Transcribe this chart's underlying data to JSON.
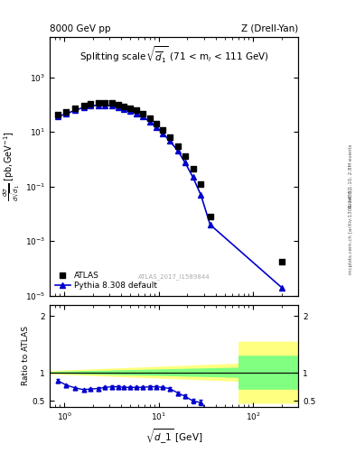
{
  "title_left": "8000 GeV pp",
  "title_right": "Z (Drell-Yan)",
  "plot_title": "Splitting scale $\\sqrt{\\overline{d}_1}$ (71 < m$_l$ < 111 GeV)",
  "ylabel_ratio": "Ratio to ATLAS",
  "watermark": "ATLAS_2017_I1589844",
  "right_label_top": "Rivet 3.1.10, 2.8M events",
  "right_label_bot": "mcplots.cern.ch [arXiv:1306.3436]",
  "xlim": [
    0.7,
    300
  ],
  "ylim_main": [
    1e-05,
    30000.0
  ],
  "ylim_ratio": [
    0.4,
    2.2
  ],
  "atlas_x": [
    0.85,
    1.05,
    1.3,
    1.6,
    1.9,
    2.3,
    2.7,
    3.2,
    3.7,
    4.3,
    5.0,
    5.8,
    6.8,
    8.0,
    9.5,
    11.0,
    13.0,
    16.0,
    19.0,
    23.0,
    28.0,
    35.0,
    200.0
  ],
  "atlas_y": [
    42,
    55,
    75,
    95,
    110,
    118,
    118,
    112,
    102,
    88,
    75,
    62,
    48,
    32,
    20,
    12,
    6.5,
    3.0,
    1.3,
    0.45,
    0.12,
    0.008,
    0.00018
  ],
  "pythia_x": [
    0.85,
    1.05,
    1.3,
    1.6,
    1.9,
    2.3,
    2.7,
    3.2,
    3.7,
    4.3,
    5.0,
    5.8,
    6.8,
    8.0,
    9.5,
    11.0,
    13.0,
    16.0,
    19.0,
    23.0,
    28.0,
    35.0,
    200.0
  ],
  "pythia_y": [
    36,
    46,
    62,
    78,
    90,
    95,
    95,
    90,
    80,
    68,
    58,
    47,
    36,
    24,
    15,
    9.0,
    4.8,
    2.0,
    0.75,
    0.22,
    0.048,
    0.004,
    2e-05
  ],
  "ratio_x": [
    0.85,
    1.05,
    1.3,
    1.6,
    1.9,
    2.3,
    2.7,
    3.2,
    3.7,
    4.3,
    5.0,
    5.8,
    6.8,
    8.0,
    9.5,
    11.0,
    13.0,
    16.0,
    19.0,
    23.0,
    28.0,
    35.0
  ],
  "ratio_y": [
    0.86,
    0.78,
    0.73,
    0.7,
    0.71,
    0.72,
    0.74,
    0.75,
    0.75,
    0.74,
    0.74,
    0.74,
    0.74,
    0.75,
    0.75,
    0.74,
    0.72,
    0.64,
    0.58,
    0.5,
    0.47,
    0.27
  ],
  "ratio_err": [
    0.03,
    0.02,
    0.02,
    0.02,
    0.02,
    0.02,
    0.02,
    0.02,
    0.02,
    0.02,
    0.02,
    0.02,
    0.02,
    0.02,
    0.02,
    0.02,
    0.02,
    0.025,
    0.03,
    0.04,
    0.05,
    0.06
  ],
  "blue_color": "#0000CC",
  "atlas_marker_color": "black",
  "yellow_color": "#FFFF80",
  "green_color": "#80FF80"
}
